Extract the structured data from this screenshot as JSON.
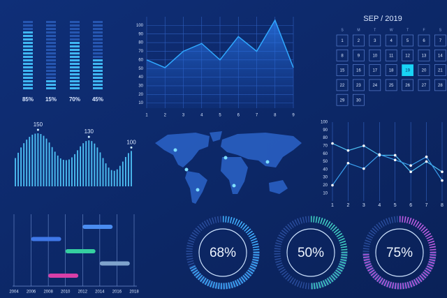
{
  "chart_data": [
    {
      "type": "meter",
      "values": [
        85,
        15,
        70,
        45
      ],
      "value_labels": [
        "85%",
        "15%",
        "70%",
        "45%"
      ],
      "ylim": [
        0,
        100
      ],
      "color": "#3fb6f2"
    },
    {
      "type": "area",
      "x": [
        1,
        2,
        3,
        4,
        5,
        6,
        7,
        8,
        9
      ],
      "values": [
        60,
        51,
        70,
        79,
        60,
        87,
        70,
        106,
        51
      ],
      "xlim": [
        1,
        9
      ],
      "ylim": [
        0,
        110
      ],
      "xticks": [
        1,
        2,
        3,
        4,
        5,
        6,
        7,
        8,
        9
      ],
      "yticks": [
        10,
        20,
        30,
        40,
        50,
        60,
        70,
        80,
        90,
        100
      ],
      "grid": true,
      "color": "#2fa8ff"
    },
    {
      "type": "bar",
      "values": [
        80,
        95,
        110,
        122,
        132,
        140,
        146,
        149,
        150,
        148,
        143,
        135,
        124,
        111,
        98,
        87,
        79,
        75,
        74,
        76,
        82,
        91,
        102,
        113,
        122,
        128,
        130,
        128,
        121,
        110,
        96,
        80,
        65,
        53,
        46,
        44,
        48,
        58,
        70,
        83,
        94,
        100
      ],
      "ylim": [
        0,
        170
      ],
      "annotations": [
        150,
        130,
        100
      ],
      "color": "#4fc3f7"
    },
    {
      "type": "line",
      "x": [
        1,
        2,
        3,
        4,
        5,
        6,
        7,
        8
      ],
      "xlim": [
        1,
        8
      ],
      "ylim": [
        0,
        100
      ],
      "xticks": [
        1,
        2,
        3,
        4,
        5,
        6,
        7,
        8
      ],
      "yticks": [
        10,
        20,
        30,
        40,
        50,
        60,
        70,
        80,
        90,
        100
      ],
      "grid": true,
      "series": [
        {
          "color": "#4fc3f7",
          "values": [
            73,
            64,
            70,
            58,
            58,
            37,
            50,
            37
          ]
        },
        {
          "color": "#3aa0f0",
          "values": [
            20,
            48,
            41,
            59,
            52,
            45,
            56,
            26
          ]
        }
      ]
    },
    {
      "type": "gantt",
      "xlim": [
        2004,
        2018
      ],
      "xticks": [
        2004,
        2006,
        2008,
        2010,
        2012,
        2014,
        2016,
        2018
      ],
      "tasks": [
        {
          "start": 2012,
          "end": 2015.5,
          "color": "#4a8cf0"
        },
        {
          "start": 2006,
          "end": 2009.5,
          "color": "#3f78e8"
        },
        {
          "start": 2010,
          "end": 2013.5,
          "color": "#35cfa0"
        },
        {
          "start": 2014,
          "end": 2017.5,
          "color": "#7fa3cc"
        },
        {
          "start": 2008,
          "end": 2011.5,
          "color": "#d83fa8"
        }
      ]
    },
    {
      "type": "gauge",
      "values": [
        68,
        50,
        75
      ],
      "value_labels": [
        "68%",
        "50%",
        "75%"
      ],
      "colors": [
        "#3fb0ff",
        "#3fd0c0",
        "#c05ae0"
      ]
    }
  ],
  "calendar": {
    "title": "SEP / 2019",
    "weekdays": [
      "S",
      "M",
      "T",
      "W",
      "T",
      "F",
      "S"
    ],
    "days": [
      1,
      2,
      3,
      4,
      5,
      6,
      7,
      8,
      9,
      10,
      11,
      12,
      13,
      14,
      15,
      16,
      17,
      18,
      19,
      20,
      21,
      22,
      23,
      24,
      25,
      26,
      27,
      28,
      29,
      30
    ],
    "highlight": 19
  }
}
